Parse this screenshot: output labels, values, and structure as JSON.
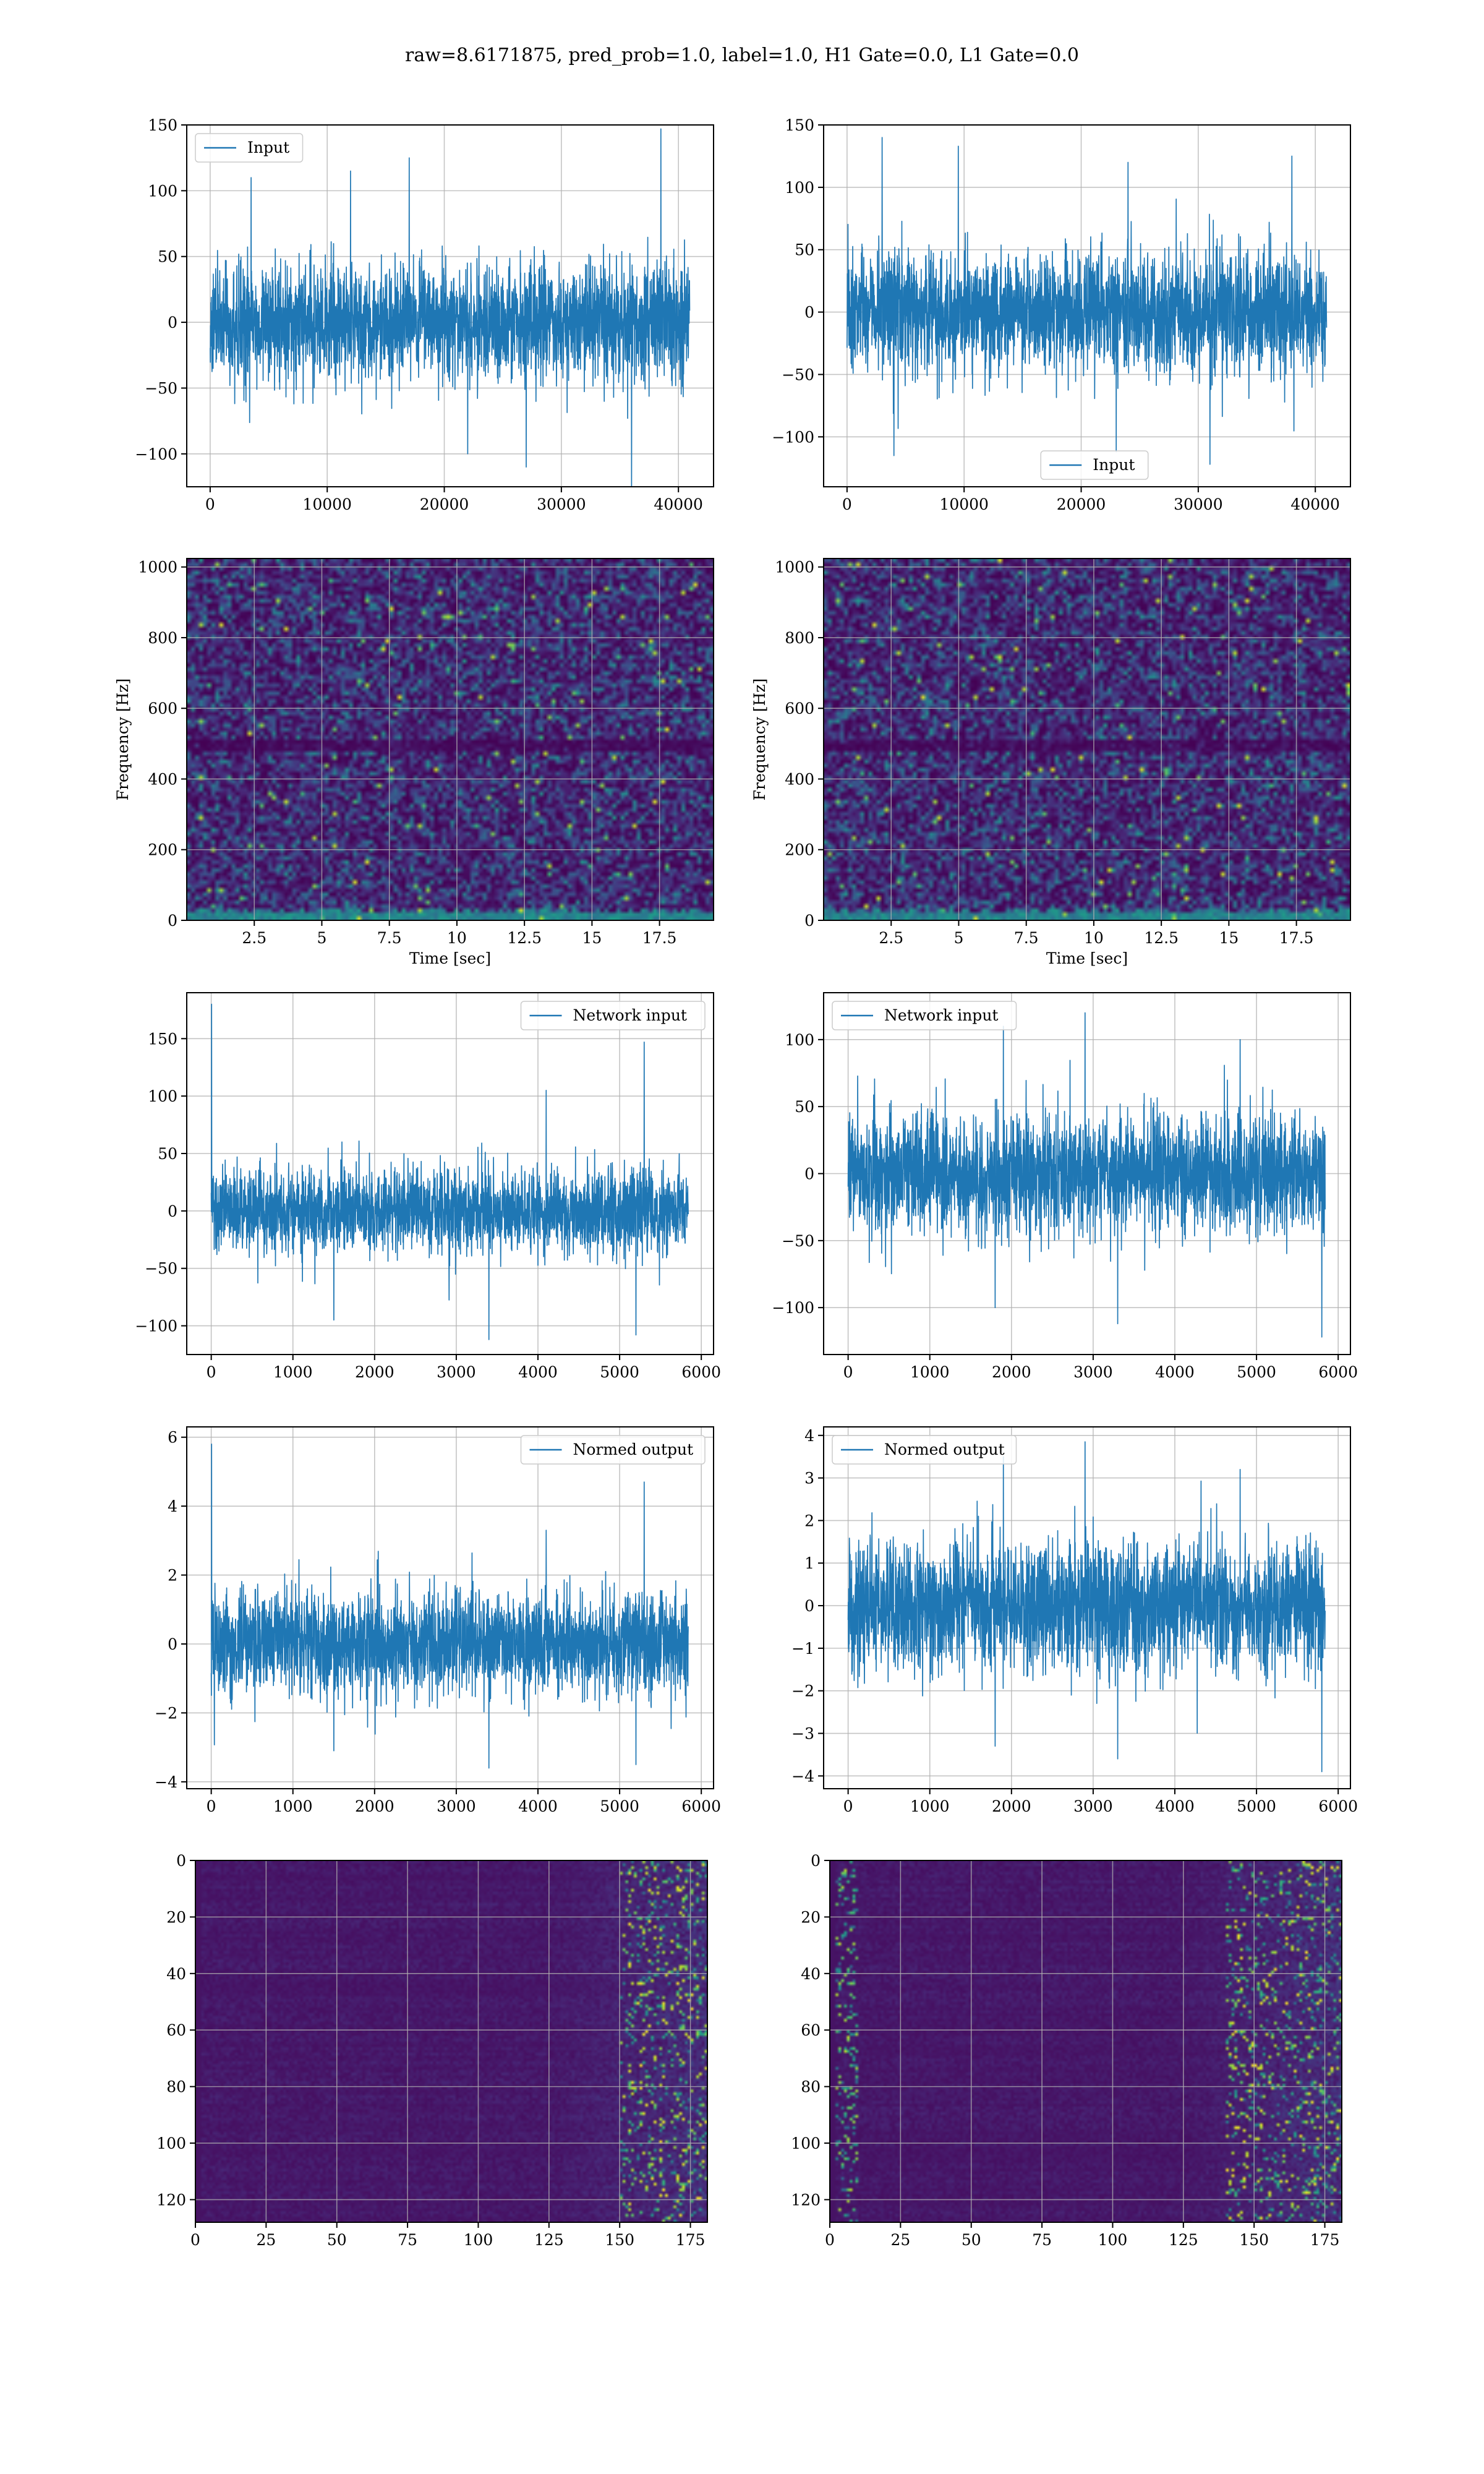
{
  "figure_title": "raw=8.6171875, pred_prob=1.0, label=1.0, H1 Gate=0.0, L1 Gate=0.0",
  "colors": {
    "series": "#1f77b4",
    "grid": "#b0b0b0",
    "viridis_low": "#440154",
    "viridis_high": "#fde725"
  },
  "chart_data": [
    {
      "id": "input-left",
      "type": "line",
      "xlim": [
        -2000,
        43000
      ],
      "ylim": [
        -125,
        150
      ],
      "xticks": [
        0,
        10000,
        20000,
        30000,
        40000
      ],
      "yticks": [
        -100,
        -50,
        0,
        50,
        100,
        150
      ],
      "legend": {
        "label": "Input",
        "loc": "upper-left"
      },
      "signal": {
        "x_start": 0,
        "x_end": 40960,
        "amplitude": 22,
        "peaks": [
          [
            3500,
            110
          ],
          [
            12000,
            115
          ],
          [
            17000,
            125
          ],
          [
            38500,
            147
          ],
          [
            22000,
            -100
          ],
          [
            36000,
            -128
          ],
          [
            27000,
            -110
          ]
        ]
      },
      "grid": true
    },
    {
      "id": "input-right",
      "type": "line",
      "xlim": [
        -2000,
        43000
      ],
      "ylim": [
        -140,
        150
      ],
      "xticks": [
        0,
        10000,
        20000,
        30000,
        40000
      ],
      "yticks": [
        -100,
        -50,
        0,
        50,
        100,
        150
      ],
      "legend": {
        "label": "Input",
        "loc": "lower-center"
      },
      "signal": {
        "x_start": 0,
        "x_end": 40960,
        "amplitude": 24,
        "peaks": [
          [
            3000,
            140
          ],
          [
            9500,
            133
          ],
          [
            24000,
            120
          ],
          [
            38000,
            125
          ],
          [
            4000,
            -115
          ],
          [
            23000,
            -112
          ],
          [
            31000,
            -122
          ]
        ]
      },
      "grid": true
    },
    {
      "id": "spectrogram-left",
      "type": "heatmap",
      "xlim": [
        0,
        19.5
      ],
      "ylim": [
        0,
        1024
      ],
      "xticks": [
        2.5,
        5.0,
        7.5,
        10.0,
        12.5,
        15.0,
        17.5
      ],
      "yticks": [
        0,
        200,
        400,
        600,
        800,
        1000
      ],
      "xlabel": "Time [sec]",
      "ylabel": "Frequency [Hz]",
      "colormap": "viridis",
      "dark_band_hz": 500,
      "grid": true
    },
    {
      "id": "spectrogram-right",
      "type": "heatmap",
      "xlim": [
        0,
        19.5
      ],
      "ylim": [
        0,
        1024
      ],
      "xticks": [
        2.5,
        5.0,
        7.5,
        10.0,
        12.5,
        15.0,
        17.5
      ],
      "yticks": [
        0,
        200,
        400,
        600,
        800,
        1000
      ],
      "xlabel": "Time [sec]",
      "ylabel": "Frequency [Hz]",
      "colormap": "viridis",
      "dark_band_hz": 500,
      "grid": true
    },
    {
      "id": "network-input-left",
      "type": "line",
      "xlim": [
        -300,
        6150
      ],
      "ylim": [
        -125,
        190
      ],
      "xticks": [
        0,
        1000,
        2000,
        3000,
        4000,
        5000,
        6000
      ],
      "yticks": [
        -100,
        -50,
        0,
        50,
        100,
        150
      ],
      "legend": {
        "label": "Network input",
        "loc": "upper-right"
      },
      "signal": {
        "x_start": 0,
        "x_end": 5840,
        "amplitude": 18,
        "peaks": [
          [
            5,
            180
          ],
          [
            4100,
            105
          ],
          [
            5300,
            147
          ],
          [
            3400,
            -112
          ],
          [
            1500,
            -95
          ],
          [
            5200,
            -108
          ]
        ]
      },
      "grid": true
    },
    {
      "id": "network-input-right",
      "type": "line",
      "xlim": [
        -300,
        6150
      ],
      "ylim": [
        -135,
        135
      ],
      "xticks": [
        0,
        1000,
        2000,
        3000,
        4000,
        5000,
        6000
      ],
      "yticks": [
        -100,
        -50,
        0,
        50,
        100
      ],
      "legend": {
        "label": "Network input",
        "loc": "upper-left"
      },
      "signal": {
        "x_start": 0,
        "x_end": 5840,
        "amplitude": 22,
        "peaks": [
          [
            2900,
            120
          ],
          [
            1900,
            110
          ],
          [
            4800,
            100
          ],
          [
            3300,
            -112
          ],
          [
            5800,
            -122
          ],
          [
            1800,
            -100
          ]
        ]
      },
      "grid": true
    },
    {
      "id": "normed-output-left",
      "type": "line",
      "xlim": [
        -300,
        6150
      ],
      "ylim": [
        -4.2,
        6.3
      ],
      "xticks": [
        0,
        1000,
        2000,
        3000,
        4000,
        5000,
        6000
      ],
      "yticks": [
        -4,
        -2,
        0,
        2,
        4,
        6
      ],
      "legend": {
        "label": "Normed output",
        "loc": "upper-right"
      },
      "signal": {
        "x_start": 0,
        "x_end": 5840,
        "amplitude": 0.72,
        "peaks": [
          [
            5,
            5.8
          ],
          [
            4100,
            3.3
          ],
          [
            5300,
            4.7
          ],
          [
            3400,
            -3.6
          ],
          [
            1500,
            -3.1
          ],
          [
            5200,
            -3.5
          ]
        ]
      },
      "grid": true
    },
    {
      "id": "normed-output-right",
      "type": "line",
      "xlim": [
        -300,
        6150
      ],
      "ylim": [
        -4.3,
        4.2
      ],
      "xticks": [
        0,
        1000,
        2000,
        3000,
        4000,
        5000,
        6000
      ],
      "yticks": [
        -4,
        -3,
        -2,
        -1,
        0,
        1,
        2,
        3,
        4
      ],
      "legend": {
        "label": "Normed output",
        "loc": "upper-left"
      },
      "signal": {
        "x_start": 0,
        "x_end": 5840,
        "amplitude": 0.75,
        "peaks": [
          [
            2900,
            3.85
          ],
          [
            1900,
            3.5
          ],
          [
            4800,
            3.2
          ],
          [
            3300,
            -3.6
          ],
          [
            5800,
            -3.9
          ],
          [
            1800,
            -3.3
          ]
        ]
      },
      "grid": true
    },
    {
      "id": "feature-map-left",
      "type": "heatmap",
      "xlim": [
        0,
        181
      ],
      "ylim": [
        128,
        0
      ],
      "xticks": [
        0,
        25,
        50,
        75,
        100,
        125,
        150,
        175
      ],
      "yticks": [
        0,
        20,
        40,
        60,
        80,
        100,
        120
      ],
      "colormap": "viridis",
      "bright_region_x": [
        150,
        181
      ],
      "grid": true
    },
    {
      "id": "feature-map-right",
      "type": "heatmap",
      "xlim": [
        0,
        181
      ],
      "ylim": [
        128,
        0
      ],
      "xticks": [
        0,
        25,
        50,
        75,
        100,
        125,
        150,
        175
      ],
      "yticks": [
        0,
        20,
        40,
        60,
        80,
        100,
        120
      ],
      "colormap": "viridis",
      "bright_region_x": [
        140,
        181
      ],
      "bright_left_edge": true,
      "grid": true
    }
  ]
}
